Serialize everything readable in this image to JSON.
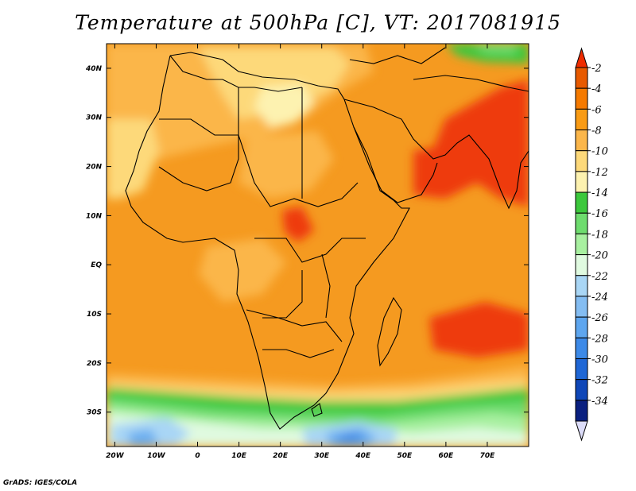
{
  "title": "Temperature at 500hPa [C], VT: 2017081915",
  "credit": "GrADS: IGES/COLA",
  "map": {
    "lon_range": [
      -22,
      80
    ],
    "lat_range": [
      -37,
      45
    ],
    "x_ticks": [
      {
        "lon": -20,
        "label": "20W"
      },
      {
        "lon": -10,
        "label": "10W"
      },
      {
        "lon": 0,
        "label": "0"
      },
      {
        "lon": 10,
        "label": "10E"
      },
      {
        "lon": 20,
        "label": "20E"
      },
      {
        "lon": 30,
        "label": "30E"
      },
      {
        "lon": 40,
        "label": "40E"
      },
      {
        "lon": 50,
        "label": "50E"
      },
      {
        "lon": 60,
        "label": "60E"
      },
      {
        "lon": 70,
        "label": "70E"
      }
    ],
    "y_ticks": [
      {
        "lat": 40,
        "label": "40N"
      },
      {
        "lat": 30,
        "label": "30N"
      },
      {
        "lat": 20,
        "label": "20N"
      },
      {
        "lat": 10,
        "label": "10N"
      },
      {
        "lat": 0,
        "label": "EQ"
      },
      {
        "lat": -10,
        "label": "10S"
      },
      {
        "lat": -20,
        "label": "20S"
      },
      {
        "lat": -30,
        "label": "30S"
      }
    ]
  },
  "colorbar": {
    "levels": [
      {
        "value": "-2",
        "color": "#e85a00"
      },
      {
        "value": "-4",
        "color": "#f57a00"
      },
      {
        "value": "-6",
        "color": "#f99b14"
      },
      {
        "value": "-8",
        "color": "#fbb64a"
      },
      {
        "value": "-10",
        "color": "#fdd97a"
      },
      {
        "value": "-12",
        "color": "#fdf2b0"
      },
      {
        "value": "-14",
        "color": "#3cc83c"
      },
      {
        "value": "-16",
        "color": "#6edc6e"
      },
      {
        "value": "-18",
        "color": "#a8f0a0"
      },
      {
        "value": "-20",
        "color": "#e0fae0"
      },
      {
        "value": "-22",
        "color": "#a9d6f5"
      },
      {
        "value": "-24",
        "color": "#84bdf2"
      },
      {
        "value": "-26",
        "color": "#5ea6ef"
      },
      {
        "value": "-28",
        "color": "#3d8ae8"
      },
      {
        "value": "-30",
        "color": "#1f67d6"
      },
      {
        "value": "-32",
        "color": "#0f47b8"
      },
      {
        "value": "-34",
        "color": "#0a2080"
      }
    ],
    "top_color": "#ee2c00",
    "bottom_color": "#dcdcf8"
  },
  "field_colors": {
    "hot": "#ee3a10",
    "warm": "#f59a20",
    "mild": "#fbb64a",
    "pale": "#fdd97a",
    "cream": "#fdf2b0",
    "green_dark": "#3cc83c",
    "green_mid": "#6edc6e",
    "green_light": "#a8f0a0",
    "ice": "#e0fae0",
    "blue_light": "#a9d6f5",
    "blue_mid": "#6aaef0",
    "blue_dark": "#4a90e6"
  }
}
